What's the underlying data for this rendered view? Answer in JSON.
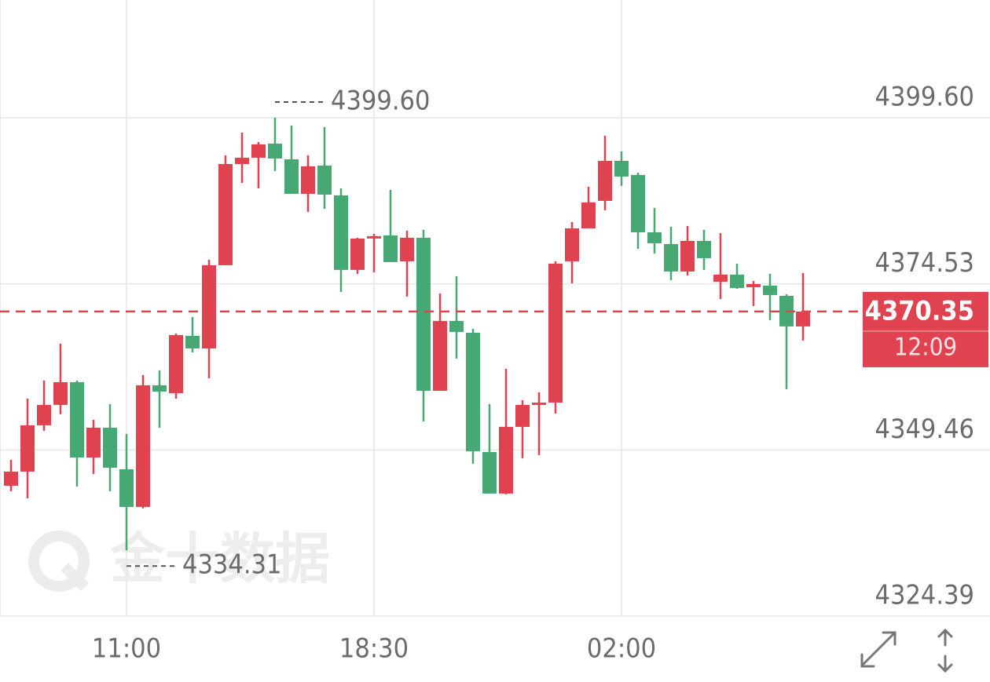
{
  "chart_data": {
    "type": "candlestick",
    "categories": [
      null,
      null,
      null,
      null,
      null,
      null,
      null,
      "11:00",
      null,
      null,
      null,
      null,
      null,
      null,
      null,
      null,
      null,
      null,
      null,
      null,
      null,
      null,
      "18:30",
      null,
      null,
      null,
      null,
      null,
      null,
      null,
      null,
      null,
      null,
      null,
      null,
      null,
      null,
      "02:00",
      null,
      null,
      null,
      null,
      null,
      null,
      null,
      null,
      null,
      null,
      null
    ],
    "open": [
      4344.06,
      4346.19,
      4353.18,
      4356.26,
      4359.69,
      4348.32,
      4352.82,
      4346.55,
      4340.86,
      4359.22,
      4358.03,
      4366.68,
      4364.78,
      4377.34,
      4392.61,
      4393.56,
      4395.69,
      4393.32,
      4388.11,
      4392.38,
      4387.88,
      4376.63,
      4381.36,
      4381.84,
      4377.93,
      4381.48,
      4358.39,
      4368.93,
      4367.15,
      4349.15,
      4342.88,
      4352.94,
      4356.26,
      4356.61,
      4377.93,
      4382.9,
      4387.05,
      4393.09,
      4390.96,
      4382.31,
      4380.53,
      4376.39,
      4381.01,
      4374.85,
      4375.92,
      4374.02,
      4374.26,
      4372.72,
      4368.1
    ],
    "high": [
      4347.97,
      4357.21,
      4359.93,
      4365.5,
      4359.93,
      4354.01,
      4356.38,
      4351.88,
      4360.76,
      4361.47,
      4367.03,
      4369.52,
      4378.17,
      4393.92,
      4397.35,
      4395.93,
      4399.6,
      4398.42,
      4393.92,
      4398.18,
      4388.94,
      4381.48,
      4382.07,
      4388.71,
      4382.55,
      4382.67,
      4373.07,
      4375.68,
      4367.75,
      4356.38,
      4361.71,
      4356.97,
      4358.15,
      4377.93,
      4383.85,
      4389.18,
      4396.88,
      4394.51,
      4391.31,
      4385.98,
      4383.14,
      4383.26,
      4382.67,
      4382.19,
      4377.57,
      4374.97,
      4376.03,
      4372.96,
      4376.15
    ],
    "low": [
      4343.23,
      4342.17,
      4352.35,
      4354.84,
      4343.94,
      4345.84,
      4343.23,
      4334.31,
      4340.63,
      4352.82,
      4357.21,
      4364.19,
      4360.28,
      4377.34,
      4389.77,
      4388.94,
      4391.55,
      4388.11,
      4385.39,
      4385.86,
      4373.31,
      4376.03,
      4376.27,
      4377.81,
      4372.6,
      4353.77,
      4358.39,
      4363.25,
      4347.38,
      4342.88,
      4342.76,
      4348.21,
      4348.68,
      4354.96,
      4374.61,
      4382.9,
      4385.63,
      4389.3,
      4379.82,
      4379.11,
      4375.09,
      4375.8,
      4376.63,
      4372.24,
      4373.78,
      4371.18,
      4369.05,
      4358.63,
      4365.97
    ],
    "close": [
      4346.19,
      4353.18,
      4356.26,
      4359.69,
      4348.32,
      4352.82,
      4346.78,
      4340.86,
      4359.22,
      4358.27,
      4366.8,
      4364.78,
      4377.34,
      4392.61,
      4393.56,
      4395.57,
      4393.44,
      4388.11,
      4392.26,
      4387.99,
      4376.63,
      4381.36,
      4381.72,
      4377.81,
      4381.48,
      4358.39,
      4368.93,
      4367.27,
      4349.27,
      4342.88,
      4352.94,
      4356.26,
      4356.61,
      4377.57,
      4382.9,
      4386.81,
      4393.09,
      4390.72,
      4382.31,
      4380.65,
      4376.39,
      4381.01,
      4378.4,
      4375.92,
      4373.9,
      4374.49,
      4372.84,
      4368.1,
      4370.35
    ],
    "up_color": "#e0434f",
    "down_color": "#46a872",
    "ylim": [
      4324.39,
      4417.36
    ],
    "yticks": [
      {
        "value": 4399.6,
        "label": "4399.60"
      },
      4374.53,
      4349.46,
      4324.39
    ],
    "grid": true,
    "annotations": [
      {
        "value": 4399.6,
        "label": "4399.60"
      },
      {
        "value": 4334.31,
        "label": "4334.31"
      }
    ],
    "last_price_line": true,
    "countdown": "12:09",
    "watermark": "金十数据"
  }
}
